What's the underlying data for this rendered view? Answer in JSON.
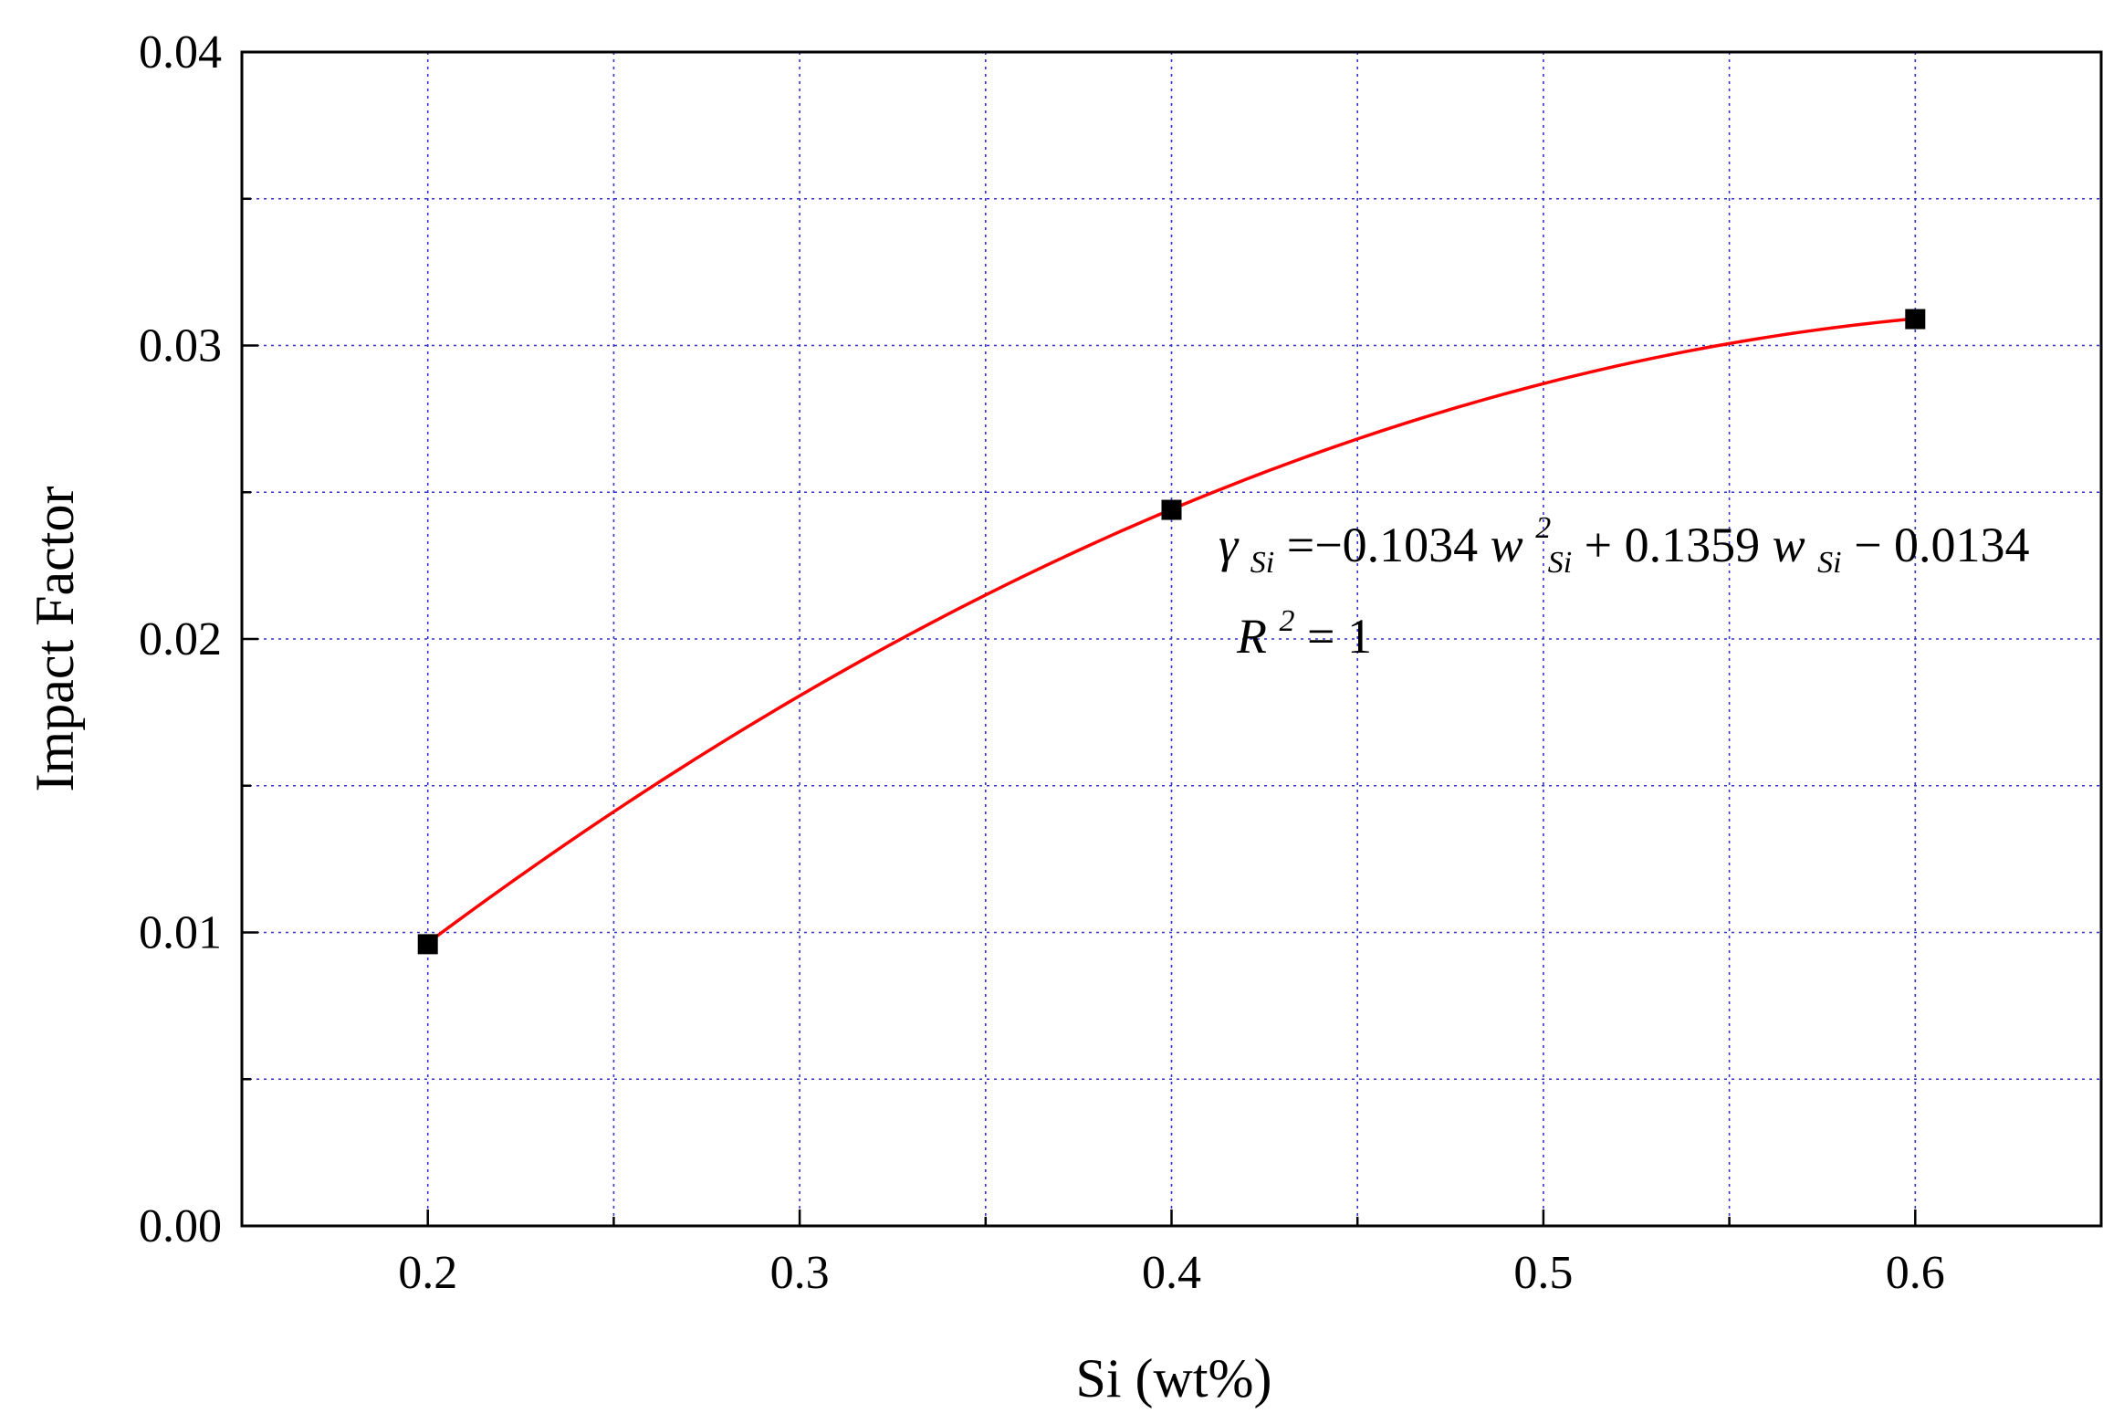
{
  "chart_data": {
    "type": "scatter",
    "xlabel": "Si (wt%)",
    "ylabel": "Impact Factor",
    "xlim": [
      0.15,
      0.65
    ],
    "ylim": [
      0.0,
      0.04
    ],
    "x_ticks": [
      "0.2",
      "0.3",
      "0.4",
      "0.5",
      "0.6"
    ],
    "y_ticks": [
      "0.00",
      "0.01",
      "0.02",
      "0.03",
      "0.04"
    ],
    "grid": true,
    "colors": {
      "fit_line": "#ff0000",
      "grid": "#3333cc",
      "markers": "#000000"
    },
    "series": [
      {
        "points": [
          {
            "x": 0.2,
            "y": 0.0096
          },
          {
            "x": 0.4,
            "y": 0.0244
          },
          {
            "x": 0.6,
            "y": 0.0309
          }
        ]
      }
    ],
    "fit": {
      "type": "quadratic",
      "a": -0.1034,
      "b": 0.1359,
      "c": -0.0134,
      "x_range": [
        0.2,
        0.6
      ]
    },
    "annotation": {
      "gamma": "γ",
      "gamma_sub": "Si",
      "eq_part1": "=−0.1034",
      "w1": "w",
      "w1_sup": "2",
      "w1_sub": "Si",
      "eq_part2": " + 0.1359",
      "w2": "w",
      "w2_sub": "Si",
      "eq_part3": " − 0.0134",
      "r": "R",
      "r_sup": "2",
      "r_val": " = 1"
    }
  }
}
